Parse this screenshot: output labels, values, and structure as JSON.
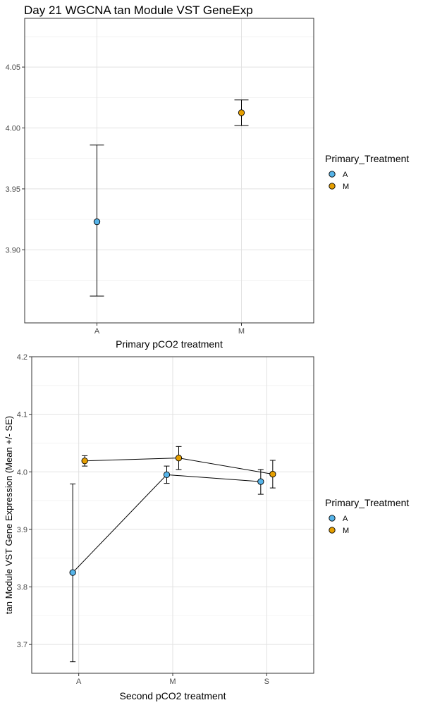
{
  "chart_data": [
    {
      "type": "scatter",
      "title": "Day 21 WGCNA tan Module VST GeneExp",
      "xlabel": "Primary pCO2 treatment",
      "ylabel": "",
      "categories": [
        "A",
        "M"
      ],
      "ylim": [
        3.84,
        4.09
      ],
      "yticks": [
        3.9,
        3.95,
        4.0,
        4.05
      ],
      "ytick_labels": [
        "3.90",
        "3.95",
        "4.00",
        "4.05"
      ],
      "grid": true,
      "legend": {
        "title": "Primary_Treatment",
        "position": "right",
        "entries": [
          "A",
          "M"
        ]
      },
      "series": [
        {
          "name": "A",
          "points": [
            {
              "x": "A",
              "mean": 3.923,
              "lower": 3.862,
              "upper": 3.986
            }
          ]
        },
        {
          "name": "M",
          "points": [
            {
              "x": "M",
              "mean": 4.0125,
              "lower": 4.002,
              "upper": 4.023
            }
          ]
        }
      ]
    },
    {
      "type": "line",
      "title": "",
      "xlabel": "Second pCO2 treatment",
      "ylabel": "tan Module VST Gene Expression (Mean +/- SE)",
      "categories": [
        "A",
        "M",
        "S"
      ],
      "ylim": [
        3.65,
        4.2
      ],
      "yticks": [
        3.7,
        3.8,
        3.9,
        4.0,
        4.1,
        4.2
      ],
      "ytick_labels": [
        "3.7",
        "3.8",
        "3.9",
        "4.0",
        "4.1",
        "4.2"
      ],
      "grid": true,
      "legend": {
        "title": "Primary_Treatment",
        "position": "right",
        "entries": [
          "A",
          "M"
        ]
      },
      "series": [
        {
          "name": "A",
          "points": [
            {
              "x": "A",
              "mean": 3.825,
              "lower": 3.67,
              "upper": 3.979
            },
            {
              "x": "M",
              "mean": 3.995,
              "lower": 3.98,
              "upper": 4.01
            },
            {
              "x": "S",
              "mean": 3.983,
              "lower": 3.961,
              "upper": 4.004
            }
          ]
        },
        {
          "name": "M",
          "points": [
            {
              "x": "A",
              "mean": 4.019,
              "lower": 4.01,
              "upper": 4.028
            },
            {
              "x": "M",
              "mean": 4.024,
              "lower": 4.004,
              "upper": 4.044
            },
            {
              "x": "S",
              "mean": 3.996,
              "lower": 3.972,
              "upper": 4.02
            }
          ]
        }
      ]
    }
  ],
  "colors": {
    "A": "#56B4E9",
    "M": "#E69F00"
  }
}
